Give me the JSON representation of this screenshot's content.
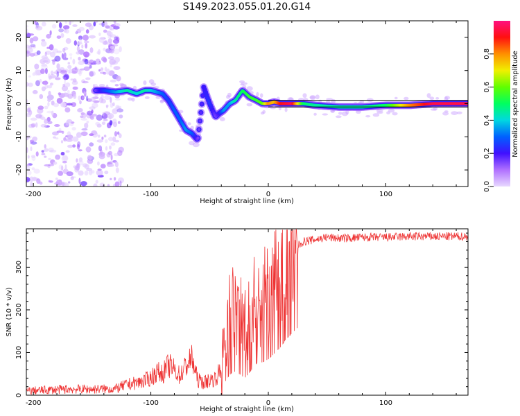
{
  "title": "S149.2023.055.01.20.G14",
  "chart_data": [
    {
      "type": "heatmap",
      "title": "",
      "xlabel": "Height of straight line (km)",
      "ylabel": "Frequency (Hz)",
      "xlim": [
        -206,
        170
      ],
      "ylim": [
        -25,
        25
      ],
      "xticks": [
        "-200",
        "-100",
        "0",
        "100"
      ],
      "xtick_values": [
        -200,
        -100,
        0,
        100
      ],
      "yticks": [
        "20",
        "10",
        "0",
        "-10",
        "-20"
      ],
      "ytick_values": [
        20,
        10,
        0,
        -10,
        -20
      ],
      "colorbar": {
        "label": "Normalized spectral amplitude",
        "ticks": [
          "0.0",
          "0.2",
          "0.4",
          "0.6",
          "0.8"
        ],
        "tick_values": [
          0.0,
          0.2,
          0.4,
          0.6,
          0.8
        ],
        "range": [
          0,
          1
        ]
      },
      "track": {
        "x": [
          -147,
          -140,
          -130,
          -120,
          -112,
          -105,
          -100,
          -95,
          -90,
          -85,
          -80,
          -75,
          -70,
          -65,
          -60,
          -55,
          -50,
          -45,
          -42,
          -38,
          -33,
          -28,
          -22,
          -16,
          -10,
          -5,
          0,
          5,
          10,
          20,
          30,
          40,
          60,
          80,
          100,
          120,
          140,
          170
        ],
        "y": [
          4,
          4,
          3.5,
          4,
          3,
          4,
          4,
          3.5,
          3,
          1,
          -2,
          -5,
          -8,
          -9,
          -11,
          5,
          0,
          -4,
          -3,
          -2,
          0,
          1,
          4,
          2,
          1,
          0,
          0,
          0.5,
          0,
          0,
          0,
          -0.5,
          -1,
          -1,
          -0.5,
          -0.5,
          0,
          0
        ],
        "amplitude": [
          0.15,
          0.25,
          0.35,
          0.45,
          0.4,
          0.45,
          0.4,
          0.35,
          0.3,
          0.25,
          0.3,
          0.3,
          0.35,
          0.3,
          0.15,
          0.2,
          0.25,
          0.15,
          0.2,
          0.35,
          0.35,
          0.45,
          0.5,
          0.55,
          0.55,
          0.6,
          0.8,
          0.75,
          0.9,
          0.95,
          0.5,
          0.45,
          0.45,
          0.45,
          0.5,
          0.8,
          0.95,
          0.95
        ]
      },
      "noise_region_x": [
        -206,
        -125
      ],
      "grid": false
    },
    {
      "type": "line",
      "title": "",
      "xlabel": "Height of straight line (km)",
      "ylabel": "SNR (10 * v/v)",
      "xlim": [
        -206,
        170
      ],
      "ylim": [
        0,
        390
      ],
      "xticks": [
        "-200",
        "-100",
        "0",
        "100"
      ],
      "xtick_values": [
        -200,
        -100,
        0,
        100
      ],
      "yticks": [
        "0",
        "100",
        "200",
        "300"
      ],
      "ytick_values": [
        0,
        100,
        200,
        300
      ],
      "color": "#ee3333",
      "series": [
        {
          "x": [
            -206,
            -190,
            -170,
            -150,
            -130,
            -120,
            -110,
            -100,
            -95,
            -90,
            -85,
            -80,
            -75,
            -70,
            -65,
            -60,
            -55,
            -50,
            -45,
            -40,
            -37,
            -34,
            -30,
            -25,
            -20,
            -15,
            -10,
            -5,
            0,
            5,
            10,
            15,
            20,
            25,
            30,
            40,
            50,
            60,
            70,
            80,
            100,
            120,
            140,
            170
          ],
          "values": [
            10,
            12,
            14,
            14,
            15,
            25,
            30,
            40,
            55,
            50,
            70,
            60,
            45,
            70,
            85,
            35,
            30,
            35,
            40,
            60,
            160,
            180,
            200,
            190,
            175,
            200,
            225,
            230,
            240,
            260,
            280,
            310,
            330,
            350,
            360,
            365,
            370,
            368,
            368,
            370,
            370,
            372,
            372,
            372
          ]
        }
      ],
      "grid": false
    }
  ]
}
